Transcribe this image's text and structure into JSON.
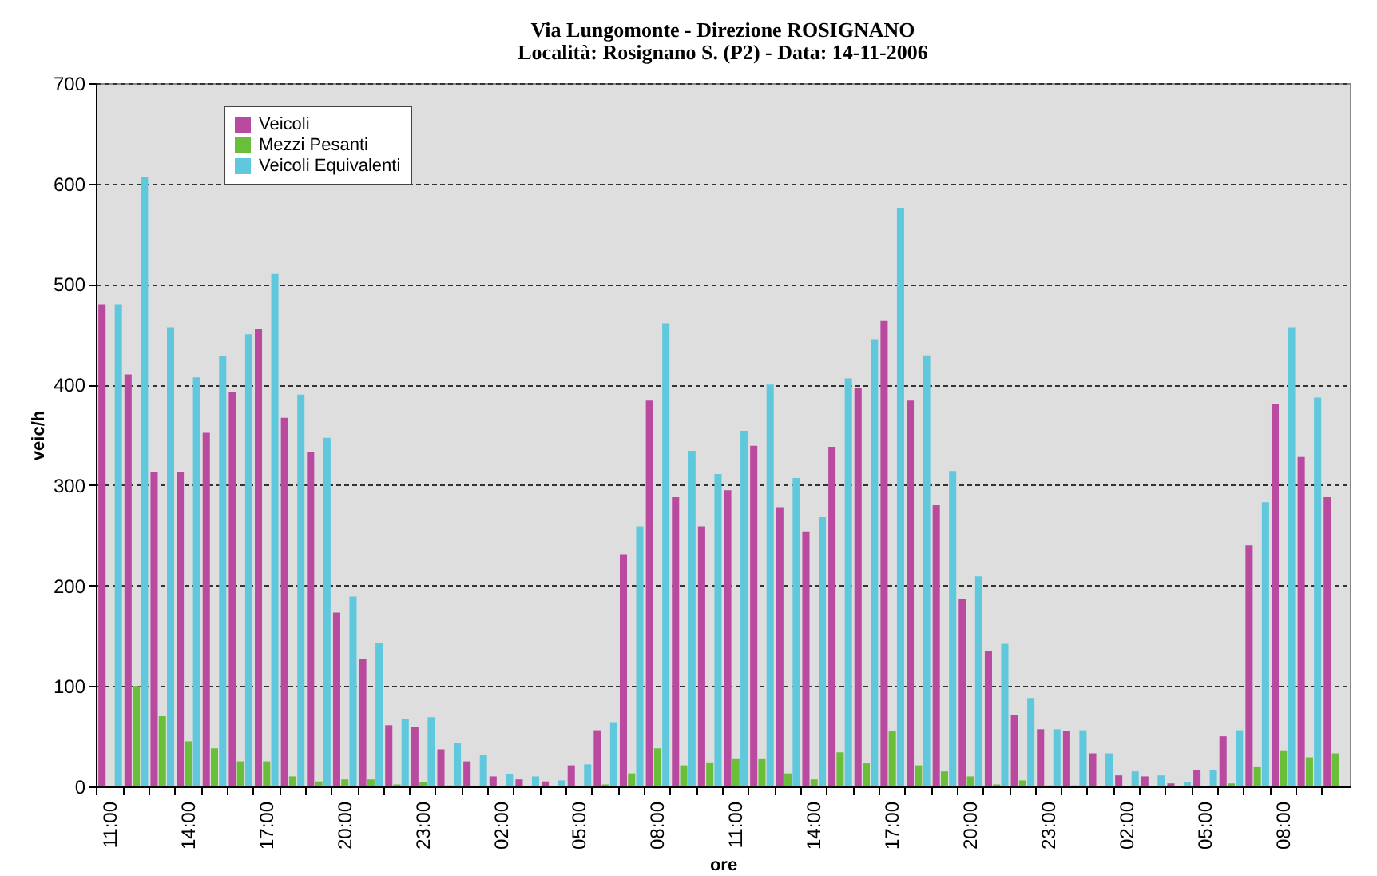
{
  "chart_data": {
    "type": "bar",
    "title": "Via Lungomonte - Direzione ROSIGNANO",
    "subtitle": "Località: Rosignano S. (P2) - Data: 14-11-2006",
    "xlabel": "ore",
    "ylabel": "veic/h",
    "categories": [
      "11:00",
      null,
      null,
      "14:00",
      null,
      null,
      "17:00",
      null,
      null,
      "20:00",
      null,
      null,
      "23:00",
      null,
      null,
      "02:00",
      null,
      null,
      "05:00",
      null,
      null,
      "08:00",
      null,
      null,
      "11:00",
      null,
      null,
      "14:00",
      null,
      null,
      "17:00",
      null,
      null,
      "20:00",
      null,
      null,
      "23:00",
      null,
      null,
      "02:00",
      null,
      null,
      "05:00",
      null,
      null,
      "08:00",
      null,
      null
    ],
    "series": [
      {
        "name": "Veicoli",
        "color": "#b94a9f",
        "values": [
          480,
          410,
          313,
          313,
          352,
          393,
          455,
          367,
          333,
          173,
          127,
          61,
          59,
          37,
          25,
          10,
          7,
          5,
          21,
          56,
          231,
          384,
          288,
          259,
          295,
          339,
          278,
          254,
          338,
          397,
          464,
          384,
          280,
          187,
          135,
          71,
          57,
          55,
          33,
          11,
          10,
          3,
          16,
          50,
          240,
          381,
          328,
          288
        ]
      },
      {
        "name": "Mezzi Pesanti",
        "color": "#6abf3a",
        "values": [
          0,
          100,
          70,
          45,
          38,
          25,
          25,
          10,
          5,
          7,
          7,
          2,
          4,
          1,
          0,
          0,
          0,
          0,
          0,
          2,
          13,
          38,
          21,
          24,
          28,
          28,
          13,
          7,
          34,
          23,
          55,
          21,
          15,
          10,
          2,
          6,
          1,
          1,
          0,
          0,
          0,
          0,
          0,
          3,
          20,
          36,
          29,
          33
        ]
      },
      {
        "name": "Veicoli Equivalenti",
        "color": "#5fc8dc",
        "values": [
          480,
          607,
          457,
          407,
          428,
          450,
          510,
          390,
          347,
          189,
          143,
          67,
          69,
          43,
          31,
          12,
          10,
          6,
          22,
          64,
          259,
          461,
          334,
          311,
          354,
          400,
          307,
          268,
          406,
          445,
          576,
          429,
          314,
          209,
          142,
          88,
          57,
          56,
          33,
          15,
          11,
          4,
          16,
          56,
          283,
          457,
          387,
          null
        ]
      }
    ],
    "ylim": [
      0,
      700
    ],
    "yticks": [
      0,
      100,
      200,
      300,
      400,
      500,
      600,
      700
    ],
    "grid": "y",
    "legend": "top left"
  }
}
